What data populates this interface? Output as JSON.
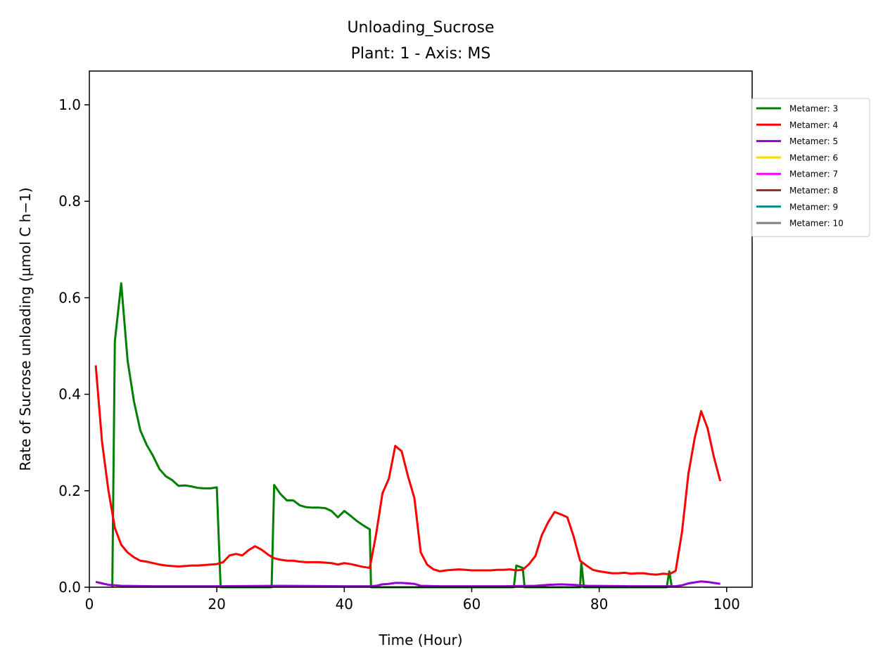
{
  "chart_data": {
    "type": "line",
    "title": "Unloading_Sucrose",
    "subtitle": "Plant: 1 - Axis: MS",
    "xlabel": "Time (Hour)",
    "ylabel": "Rate of Sucrose unloading (µmol C h−1)",
    "xlim": [
      0,
      104
    ],
    "ylim": [
      0,
      1.07
    ],
    "x_ticks": [
      0,
      20,
      40,
      60,
      80,
      100
    ],
    "y_ticks": [
      0.0,
      0.2,
      0.4,
      0.6,
      0.8,
      1.0
    ],
    "x_tick_labels": [
      "0",
      "20",
      "40",
      "60",
      "80",
      "100"
    ],
    "y_tick_labels": [
      "0.0",
      "0.2",
      "0.4",
      "0.6",
      "0.8",
      "1.0"
    ],
    "grid": false,
    "legend_position": "right, outside plot area",
    "series": [
      {
        "name": "Metamer: 3",
        "color": "#008000",
        "points": [
          [
            3.6,
            0.0
          ],
          [
            4,
            0.51
          ],
          [
            5,
            0.63
          ],
          [
            6,
            0.47
          ],
          [
            7,
            0.385
          ],
          [
            8,
            0.325
          ],
          [
            9,
            0.295
          ],
          [
            10,
            0.272
          ],
          [
            11,
            0.245
          ],
          [
            12,
            0.23
          ],
          [
            13,
            0.222
          ],
          [
            14,
            0.21
          ],
          [
            15,
            0.211
          ],
          [
            16,
            0.209
          ],
          [
            17,
            0.206
          ],
          [
            18,
            0.205
          ],
          [
            19,
            0.205
          ],
          [
            20,
            0.207
          ],
          [
            20.6,
            0.0
          ],
          [
            28.6,
            0.0
          ],
          [
            29,
            0.212
          ],
          [
            30,
            0.193
          ],
          [
            31,
            0.18
          ],
          [
            32,
            0.18
          ],
          [
            33,
            0.17
          ],
          [
            34,
            0.166
          ],
          [
            35,
            0.165
          ],
          [
            36,
            0.165
          ],
          [
            37,
            0.164
          ],
          [
            38,
            0.158
          ],
          [
            39,
            0.145
          ],
          [
            40,
            0.158
          ],
          [
            41,
            0.148
          ],
          [
            42,
            0.137
          ],
          [
            43,
            0.128
          ],
          [
            44,
            0.12
          ],
          [
            44.2,
            0.0
          ],
          [
            66.6,
            0.0
          ],
          [
            67,
            0.045
          ],
          [
            68,
            0.04
          ],
          [
            68.3,
            0.0
          ],
          [
            77,
            0.0
          ],
          [
            77.2,
            0.052
          ],
          [
            77.6,
            0.0
          ],
          [
            90.6,
            0.0
          ],
          [
            91,
            0.033
          ],
          [
            91.4,
            0.0
          ]
        ]
      },
      {
        "name": "Metamer: 4",
        "color": "#ff0000",
        "points": [
          [
            1,
            0.46
          ],
          [
            2,
            0.3
          ],
          [
            3,
            0.2
          ],
          [
            4,
            0.123
          ],
          [
            5,
            0.088
          ],
          [
            6,
            0.072
          ],
          [
            7,
            0.062
          ],
          [
            8,
            0.055
          ],
          [
            9,
            0.053
          ],
          [
            10,
            0.05
          ],
          [
            11,
            0.047
          ],
          [
            12,
            0.045
          ],
          [
            13,
            0.044
          ],
          [
            14,
            0.043
          ],
          [
            15,
            0.044
          ],
          [
            16,
            0.045
          ],
          [
            17,
            0.045
          ],
          [
            18,
            0.046
          ],
          [
            19,
            0.047
          ],
          [
            20,
            0.048
          ],
          [
            21,
            0.052
          ],
          [
            22,
            0.066
          ],
          [
            23,
            0.069
          ],
          [
            24,
            0.066
          ],
          [
            25,
            0.077
          ],
          [
            26,
            0.085
          ],
          [
            27,
            0.078
          ],
          [
            28,
            0.068
          ],
          [
            29,
            0.06
          ],
          [
            30,
            0.057
          ],
          [
            31,
            0.055
          ],
          [
            32,
            0.055
          ],
          [
            33,
            0.053
          ],
          [
            34,
            0.052
          ],
          [
            35,
            0.052
          ],
          [
            36,
            0.052
          ],
          [
            37,
            0.051
          ],
          [
            38,
            0.05
          ],
          [
            39,
            0.047
          ],
          [
            40,
            0.05
          ],
          [
            41,
            0.048
          ],
          [
            42,
            0.045
          ],
          [
            43,
            0.042
          ],
          [
            44,
            0.04
          ],
          [
            45,
            0.11
          ],
          [
            46,
            0.195
          ],
          [
            47,
            0.225
          ],
          [
            48,
            0.293
          ],
          [
            49,
            0.282
          ],
          [
            50,
            0.23
          ],
          [
            51,
            0.185
          ],
          [
            52,
            0.072
          ],
          [
            53,
            0.047
          ],
          [
            54,
            0.037
          ],
          [
            55,
            0.033
          ],
          [
            56,
            0.035
          ],
          [
            57,
            0.036
          ],
          [
            58,
            0.037
          ],
          [
            59,
            0.036
          ],
          [
            60,
            0.035
          ],
          [
            61,
            0.035
          ],
          [
            62,
            0.035
          ],
          [
            63,
            0.035
          ],
          [
            64,
            0.036
          ],
          [
            65,
            0.036
          ],
          [
            66,
            0.037
          ],
          [
            67,
            0.035
          ],
          [
            68,
            0.036
          ],
          [
            69,
            0.048
          ],
          [
            70,
            0.065
          ],
          [
            71,
            0.108
          ],
          [
            72,
            0.135
          ],
          [
            73,
            0.156
          ],
          [
            74,
            0.151
          ],
          [
            75,
            0.145
          ],
          [
            76,
            0.105
          ],
          [
            77,
            0.055
          ],
          [
            78,
            0.045
          ],
          [
            79,
            0.036
          ],
          [
            80,
            0.033
          ],
          [
            81,
            0.031
          ],
          [
            82,
            0.029
          ],
          [
            83,
            0.029
          ],
          [
            84,
            0.03
          ],
          [
            85,
            0.028
          ],
          [
            86,
            0.029
          ],
          [
            87,
            0.029
          ],
          [
            88,
            0.027
          ],
          [
            89,
            0.026
          ],
          [
            90,
            0.028
          ],
          [
            91,
            0.027
          ],
          [
            92,
            0.034
          ],
          [
            93,
            0.115
          ],
          [
            94,
            0.235
          ],
          [
            95,
            0.31
          ],
          [
            96,
            0.365
          ],
          [
            97,
            0.33
          ],
          [
            98,
            0.27
          ],
          [
            99,
            0.22
          ]
        ]
      },
      {
        "name": "Metamer: 5",
        "color": "#9400d3",
        "points": [
          [
            1,
            0.011
          ],
          [
            2,
            0.008
          ],
          [
            3,
            0.005
          ],
          [
            4,
            0.004
          ],
          [
            5,
            0.003
          ],
          [
            10,
            0.002
          ],
          [
            20,
            0.002
          ],
          [
            30,
            0.003
          ],
          [
            40,
            0.002
          ],
          [
            44,
            0.002
          ],
          [
            45,
            0.003
          ],
          [
            46,
            0.006
          ],
          [
            47,
            0.007
          ],
          [
            48,
            0.009
          ],
          [
            49,
            0.009
          ],
          [
            50,
            0.008
          ],
          [
            51,
            0.007
          ],
          [
            52,
            0.003
          ],
          [
            55,
            0.002
          ],
          [
            65,
            0.002
          ],
          [
            70,
            0.003
          ],
          [
            72,
            0.005
          ],
          [
            74,
            0.006
          ],
          [
            76,
            0.005
          ],
          [
            78,
            0.003
          ],
          [
            85,
            0.002
          ],
          [
            92,
            0.002
          ],
          [
            93,
            0.004
          ],
          [
            94,
            0.008
          ],
          [
            95,
            0.01
          ],
          [
            96,
            0.012
          ],
          [
            97,
            0.011
          ],
          [
            98,
            0.009
          ],
          [
            99,
            0.007
          ]
        ]
      },
      {
        "name": "Metamer: 6",
        "color": "#ffd700",
        "points": []
      },
      {
        "name": "Metamer: 7",
        "color": "#ff00ff",
        "points": []
      },
      {
        "name": "Metamer: 8",
        "color": "#a52a2a",
        "points": []
      },
      {
        "name": "Metamer: 9",
        "color": "#008b8b",
        "points": []
      },
      {
        "name": "Metamer: 10",
        "color": "#808080",
        "points": []
      }
    ]
  }
}
